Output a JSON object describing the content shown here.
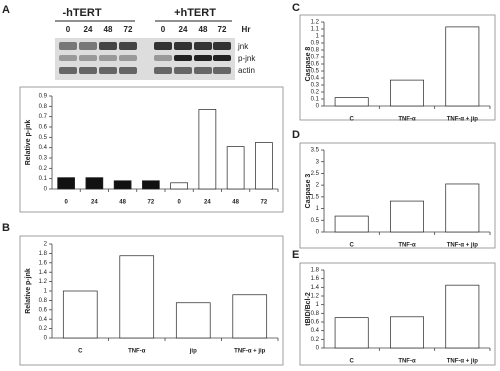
{
  "blot": {
    "groups": [
      "-hTERT",
      "+hTERT"
    ],
    "lanes": [
      "0",
      "24",
      "48",
      "72",
      "0",
      "24",
      "48",
      "72"
    ],
    "unit": "Hr",
    "bands": [
      "jnk",
      "p-jnk",
      "actin"
    ]
  },
  "chart_data": [
    {
      "type": "bar",
      "panel": "A",
      "y_label": "Relative p-jnk",
      "categories": [
        "0",
        "24",
        "48",
        "72",
        "0",
        "24",
        "48",
        "72"
      ],
      "values": [
        0.11,
        0.11,
        0.08,
        0.08,
        0.06,
        0.77,
        0.41,
        0.45
      ],
      "colors": [
        "#111111",
        "#111111",
        "#111111",
        "#111111",
        "#ffffff",
        "#ffffff",
        "#ffffff",
        "#ffffff"
      ],
      "ylim": [
        0,
        0.9
      ],
      "yticks": [
        0,
        0.1,
        0.2,
        0.3,
        0.4,
        0.5,
        0.6,
        0.7,
        0.8,
        0.9
      ]
    },
    {
      "type": "bar",
      "panel": "B",
      "y_label": "Relative p-jnk",
      "categories": [
        "C",
        "TNF-α",
        "jip",
        "TNF-α + jip"
      ],
      "values": [
        1.0,
        1.75,
        0.75,
        0.92
      ],
      "color": "#ffffff",
      "ylim": [
        0,
        2
      ],
      "yticks": [
        0,
        0.2,
        0.4,
        0.6,
        0.8,
        1,
        1.2,
        1.4,
        1.6,
        1.8,
        2
      ]
    },
    {
      "type": "bar",
      "panel": "C",
      "y_label": "Caspase 8",
      "categories": [
        "C",
        "TNF-α",
        "TNF-α + jip"
      ],
      "values": [
        0.12,
        0.37,
        1.13
      ],
      "color": "#ffffff",
      "ylim": [
        0,
        1.2
      ],
      "yticks": [
        0,
        0.1,
        0.2,
        0.3,
        0.4,
        0.5,
        0.6,
        0.7,
        0.8,
        0.9,
        1,
        1.1,
        1.2
      ]
    },
    {
      "type": "bar",
      "panel": "D",
      "y_label": "Caspase 3",
      "categories": [
        "C",
        "TNF-α",
        "TNF-α + jip"
      ],
      "values": [
        0.68,
        1.32,
        2.05
      ],
      "color": "#ffffff",
      "ylim": [
        0,
        3.5
      ],
      "yticks": [
        0,
        0.5,
        1,
        1.5,
        2,
        2.5,
        3,
        3.5
      ]
    },
    {
      "type": "bar",
      "panel": "E",
      "y_label": "tBID/Bcl-2",
      "categories": [
        "C",
        "TNF-α",
        "TNF-α + jip"
      ],
      "values": [
        0.7,
        0.72,
        1.45
      ],
      "color": "#ffffff",
      "ylim": [
        0,
        1.8
      ],
      "yticks": [
        0,
        0.2,
        0.4,
        0.6,
        0.8,
        1,
        1.2,
        1.4,
        1.6,
        1.8
      ]
    }
  ]
}
